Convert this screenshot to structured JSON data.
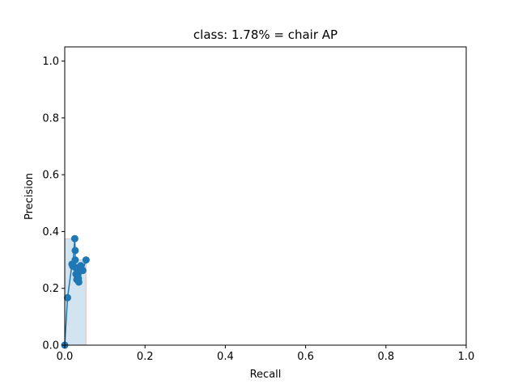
{
  "chart_data": {
    "type": "line",
    "title": "class: 1.78% = chair AP",
    "xlabel": "Recall",
    "ylabel": "Precision",
    "xlim": [
      0.0,
      1.0
    ],
    "ylim": [
      0.0,
      1.05
    ],
    "xticks": [
      0.0,
      0.2,
      0.4,
      0.6,
      0.8,
      1.0
    ],
    "xtick_labels": [
      "0.0",
      "0.2",
      "0.4",
      "0.6",
      "0.8",
      "1.0"
    ],
    "yticks": [
      0.0,
      0.2,
      0.4,
      0.6,
      0.8,
      1.0
    ],
    "ytick_labels": [
      "0.0",
      "0.2",
      "0.4",
      "0.6",
      "0.8",
      "1.0"
    ],
    "grid": false,
    "series": [
      {
        "kind": "pr-curve",
        "color": "#1f77b4",
        "marker": "circle",
        "x": [
          0.0,
          0.007,
          0.018,
          0.02,
          0.025,
          0.026,
          0.026,
          0.027,
          0.028,
          0.03,
          0.031,
          0.033,
          0.034,
          0.035,
          0.04,
          0.045,
          0.053
        ],
        "y": [
          0.0,
          0.167,
          0.285,
          0.278,
          0.375,
          0.333,
          0.3,
          0.273,
          0.25,
          0.231,
          0.267,
          0.25,
          0.235,
          0.222,
          0.28,
          0.263,
          0.3
        ]
      }
    ],
    "ap_area": {
      "fill_color": "#1f77b4",
      "fill_opacity": 0.2,
      "edge_color": "#d62728",
      "x": [
        0.0,
        0.0,
        0.025,
        0.025,
        0.053,
        0.053
      ],
      "y": [
        0.0,
        0.375,
        0.375,
        0.3,
        0.3,
        0.0
      ]
    }
  }
}
